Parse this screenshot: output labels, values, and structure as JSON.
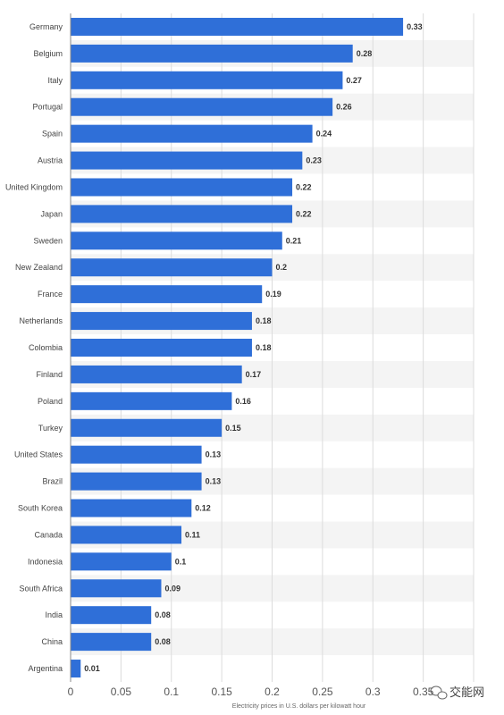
{
  "chart_data": {
    "type": "bar",
    "orientation": "horizontal",
    "title": "",
    "xlabel": "Electricity prices in U.S. dollars per kilowatt hour",
    "ylabel": "",
    "categories": [
      "Germany",
      "Belgium",
      "Italy",
      "Portugal",
      "Spain",
      "Austria",
      "United Kingdom",
      "Japan",
      "Sweden",
      "New Zealand",
      "France",
      "Netherlands",
      "Colombia",
      "Finland",
      "Poland",
      "Turkey",
      "United States",
      "Brazil",
      "South Korea",
      "Canada",
      "Indonesia",
      "South Africa",
      "India",
      "China",
      "Argentina"
    ],
    "values": [
      0.33,
      0.28,
      0.27,
      0.26,
      0.24,
      0.23,
      0.22,
      0.22,
      0.21,
      0.2,
      0.19,
      0.18,
      0.18,
      0.17,
      0.16,
      0.15,
      0.13,
      0.13,
      0.12,
      0.11,
      0.1,
      0.09,
      0.08,
      0.08,
      0.01
    ],
    "value_labels": [
      "0.33",
      "0.28",
      "0.27",
      "0.26",
      "0.24",
      "0.23",
      "0.22",
      "0.22",
      "0.21",
      "0.2",
      "0.19",
      "0.18",
      "0.18",
      "0.17",
      "0.16",
      "0.15",
      "0.13",
      "0.13",
      "0.12",
      "0.11",
      "0.1",
      "0.09",
      "0.08",
      "0.08",
      "0.01"
    ],
    "xticks": [
      0,
      0.05,
      0.1,
      0.15,
      0.2,
      0.25,
      0.3,
      0.35
    ],
    "xtick_labels": [
      "0",
      "0.05",
      "0.1",
      "0.15",
      "0.2",
      "0.25",
      "0.3",
      "0.35"
    ],
    "xlim": [
      0,
      0.4
    ],
    "grid": true,
    "bar_color": "#2f6fd8",
    "stripe_color": "#f4f4f4"
  },
  "watermark": {
    "text": "交能网",
    "icon": "wechat-icon"
  }
}
